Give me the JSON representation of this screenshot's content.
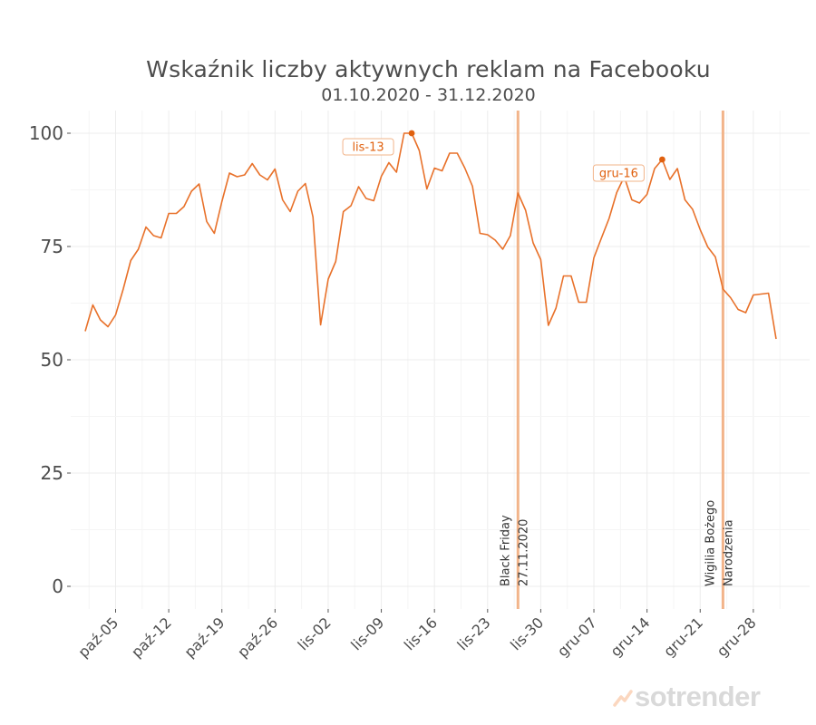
{
  "chart_data": {
    "type": "line",
    "title": "Wskaźnik liczby aktywnych reklam na Facebooku",
    "subtitle": "01.10.2020 - 31.12.2020",
    "ylim": [
      0,
      100
    ],
    "yticks": [
      "0",
      "25",
      "50",
      "75",
      "100"
    ],
    "xticks": [
      "paź-05",
      "paź-12",
      "paź-19",
      "paź-26",
      "lis-02",
      "lis-09",
      "lis-16",
      "lis-23",
      "lis-30",
      "gru-07",
      "gru-14",
      "gru-21",
      "gru-28"
    ],
    "xtick_dates": [
      "2020-10-05",
      "2020-10-12",
      "2020-10-19",
      "2020-10-26",
      "2020-11-02",
      "2020-11-09",
      "2020-11-16",
      "2020-11-23",
      "2020-11-30",
      "2020-12-07",
      "2020-12-14",
      "2020-12-21",
      "2020-12-28"
    ],
    "grid": true,
    "color": "#e8712a",
    "series": [
      {
        "x": [
          "2020-10-01",
          "2020-10-02",
          "2020-10-03",
          "2020-10-04",
          "2020-10-05",
          "2020-10-06",
          "2020-10-07",
          "2020-10-08",
          "2020-10-09",
          "2020-10-10",
          "2020-10-11",
          "2020-10-12",
          "2020-10-13",
          "2020-10-14",
          "2020-10-15",
          "2020-10-16",
          "2020-10-17",
          "2020-10-18",
          "2020-10-19",
          "2020-10-20",
          "2020-10-21",
          "2020-10-22",
          "2020-10-23",
          "2020-10-24",
          "2020-10-25",
          "2020-10-26",
          "2020-10-27",
          "2020-10-28",
          "2020-10-29",
          "2020-10-30",
          "2020-10-31",
          "2020-11-01",
          "2020-11-02",
          "2020-11-03",
          "2020-11-04",
          "2020-11-05",
          "2020-11-06",
          "2020-11-07",
          "2020-11-08",
          "2020-11-09",
          "2020-11-10",
          "2020-11-11",
          "2020-11-12",
          "2020-11-13",
          "2020-11-14",
          "2020-11-15",
          "2020-11-16",
          "2020-11-17",
          "2020-11-18",
          "2020-11-19",
          "2020-11-20",
          "2020-11-21",
          "2020-11-22",
          "2020-11-23",
          "2020-11-24",
          "2020-11-25",
          "2020-11-26",
          "2020-11-27",
          "2020-11-28",
          "2020-11-29",
          "2020-11-30",
          "2020-12-01",
          "2020-12-02",
          "2020-12-03",
          "2020-12-04",
          "2020-12-05",
          "2020-12-06",
          "2020-12-07",
          "2020-12-08",
          "2020-12-09",
          "2020-12-10",
          "2020-12-11",
          "2020-12-12",
          "2020-12-13",
          "2020-12-14",
          "2020-12-15",
          "2020-12-16",
          "2020-12-17",
          "2020-12-18",
          "2020-12-19",
          "2020-12-20",
          "2020-12-21",
          "2020-12-22",
          "2020-12-23",
          "2020-12-24",
          "2020-12-25",
          "2020-12-26",
          "2020-12-27",
          "2020-12-28",
          "2020-12-29",
          "2020-12-30",
          "2020-12-31"
        ],
        "values": [
          56.3,
          62.1,
          58.8,
          57.3,
          59.9,
          65.6,
          71.9,
          74.4,
          79.3,
          77.4,
          76.9,
          82.3,
          82.3,
          83.8,
          87.2,
          88.8,
          80.5,
          77.9,
          84.9,
          91.2,
          90.4,
          90.8,
          93.3,
          90.8,
          89.7,
          92.1,
          85.3,
          82.7,
          87.2,
          88.9,
          81.5,
          57.7,
          67.8,
          71.7,
          82.7,
          84.0,
          88.2,
          85.6,
          85.1,
          90.5,
          93.5,
          91.4,
          100.0,
          100.0,
          96.2,
          87.7,
          92.3,
          91.7,
          95.6,
          95.6,
          92.3,
          88.3,
          77.9,
          77.6,
          76.4,
          74.4,
          77.4,
          86.8,
          83.0,
          75.8,
          72.1,
          57.6,
          61.4,
          68.5,
          68.5,
          62.7,
          62.7,
          72.5,
          76.9,
          81.2,
          86.9,
          90.4,
          85.3,
          84.6,
          86.5,
          92.2,
          94.2,
          89.8,
          92.2,
          85.3,
          83.2,
          78.7,
          74.9,
          72.7,
          65.6,
          63.7,
          61.1,
          60.4,
          64.3,
          64.5,
          64.7,
          54.6
        ]
      }
    ],
    "markers": [
      {
        "x": "2020-11-13",
        "value": 100.0,
        "label": "lis-13"
      },
      {
        "x": "2020-12-16",
        "value": 94.2,
        "label": "gru-16"
      }
    ],
    "events": [
      {
        "x": "2020-11-27",
        "line1": "Black Friday",
        "line2": "27.11.2020"
      },
      {
        "x": "2020-12-24",
        "line1": "Wigilia Bożego",
        "line2": "Narodzenia"
      }
    ]
  },
  "branding": {
    "logo_text": "sotrender",
    "logo_icon": "chart-trend-icon"
  }
}
